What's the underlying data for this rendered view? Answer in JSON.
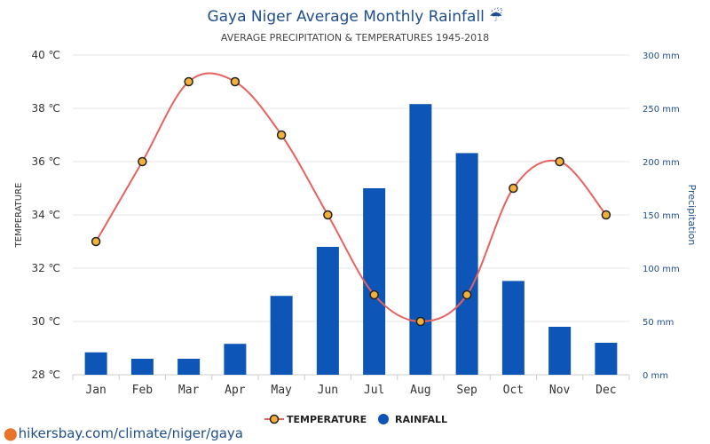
{
  "chart_data": {
    "type": "bar",
    "title": "Gaya Niger Average Monthly Rainfall ☔",
    "subtitle": "AVERAGE PRECIPITATION & TEMPERATURES 1945-2018",
    "categories": [
      "Jan",
      "Feb",
      "Mar",
      "Apr",
      "May",
      "Jun",
      "Jul",
      "Aug",
      "Sep",
      "Oct",
      "Nov",
      "Dec"
    ],
    "series": [
      {
        "name": "TEMPERATURE",
        "type": "line",
        "axis": "left",
        "unit": "℃",
        "color": "#e8615f",
        "marker_fill": "#f3b13c",
        "values": [
          33,
          36,
          39,
          39,
          37,
          34,
          31,
          30,
          31,
          35,
          36,
          34
        ]
      },
      {
        "name": "RAINFALL",
        "type": "bar",
        "axis": "right",
        "unit": "mm",
        "color": "#0d56b7",
        "values": [
          21,
          15,
          15,
          29,
          74,
          120,
          175,
          254,
          208,
          88,
          45,
          30
        ]
      }
    ],
    "y_left": {
      "label": "TEMPERATURE",
      "range": [
        28,
        40
      ],
      "ticks": [
        "28 ℃",
        "30 ℃",
        "32 ℃",
        "34 ℃",
        "36 ℃",
        "38 ℃",
        "40 ℃"
      ]
    },
    "y_right": {
      "label": "Precipitation",
      "range": [
        0,
        300
      ],
      "ticks": [
        "0 mm",
        "50 mm",
        "100 mm",
        "150 mm",
        "200 mm",
        "250 mm",
        "300 mm"
      ]
    },
    "grid": true,
    "legend_position": "bottom"
  },
  "footer": {
    "source_link": "hikersbay.com/climate/niger/gaya"
  }
}
